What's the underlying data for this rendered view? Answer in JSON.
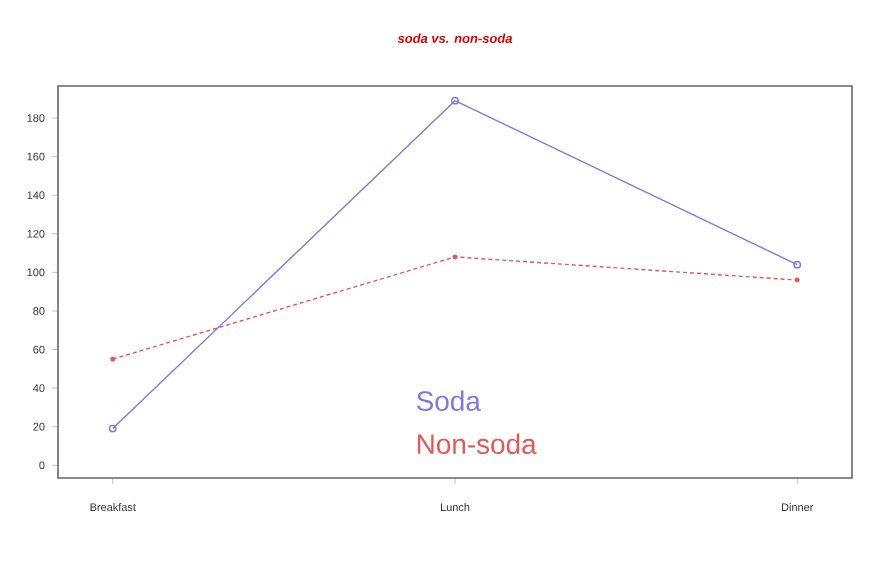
{
  "chart_data": {
    "type": "line",
    "title": "soda vs. non-soda",
    "categories": [
      "Breakfast",
      "Lunch",
      "Dinner"
    ],
    "series": [
      {
        "name": "Soda",
        "color": "#7b7bd8",
        "values": [
          19,
          189,
          104
        ],
        "marker": "circle",
        "line_style": "solid"
      },
      {
        "name": "Non-soda",
        "color": "#e05a5a",
        "values": [
          55,
          108,
          96
        ],
        "marker": "dot",
        "line_style": "dashed"
      }
    ],
    "ylim": [
      -6.6,
      196.6
    ],
    "yticks": [
      0,
      20,
      40,
      60,
      80,
      100,
      120,
      140,
      160,
      180
    ],
    "legend": "bottom"
  }
}
